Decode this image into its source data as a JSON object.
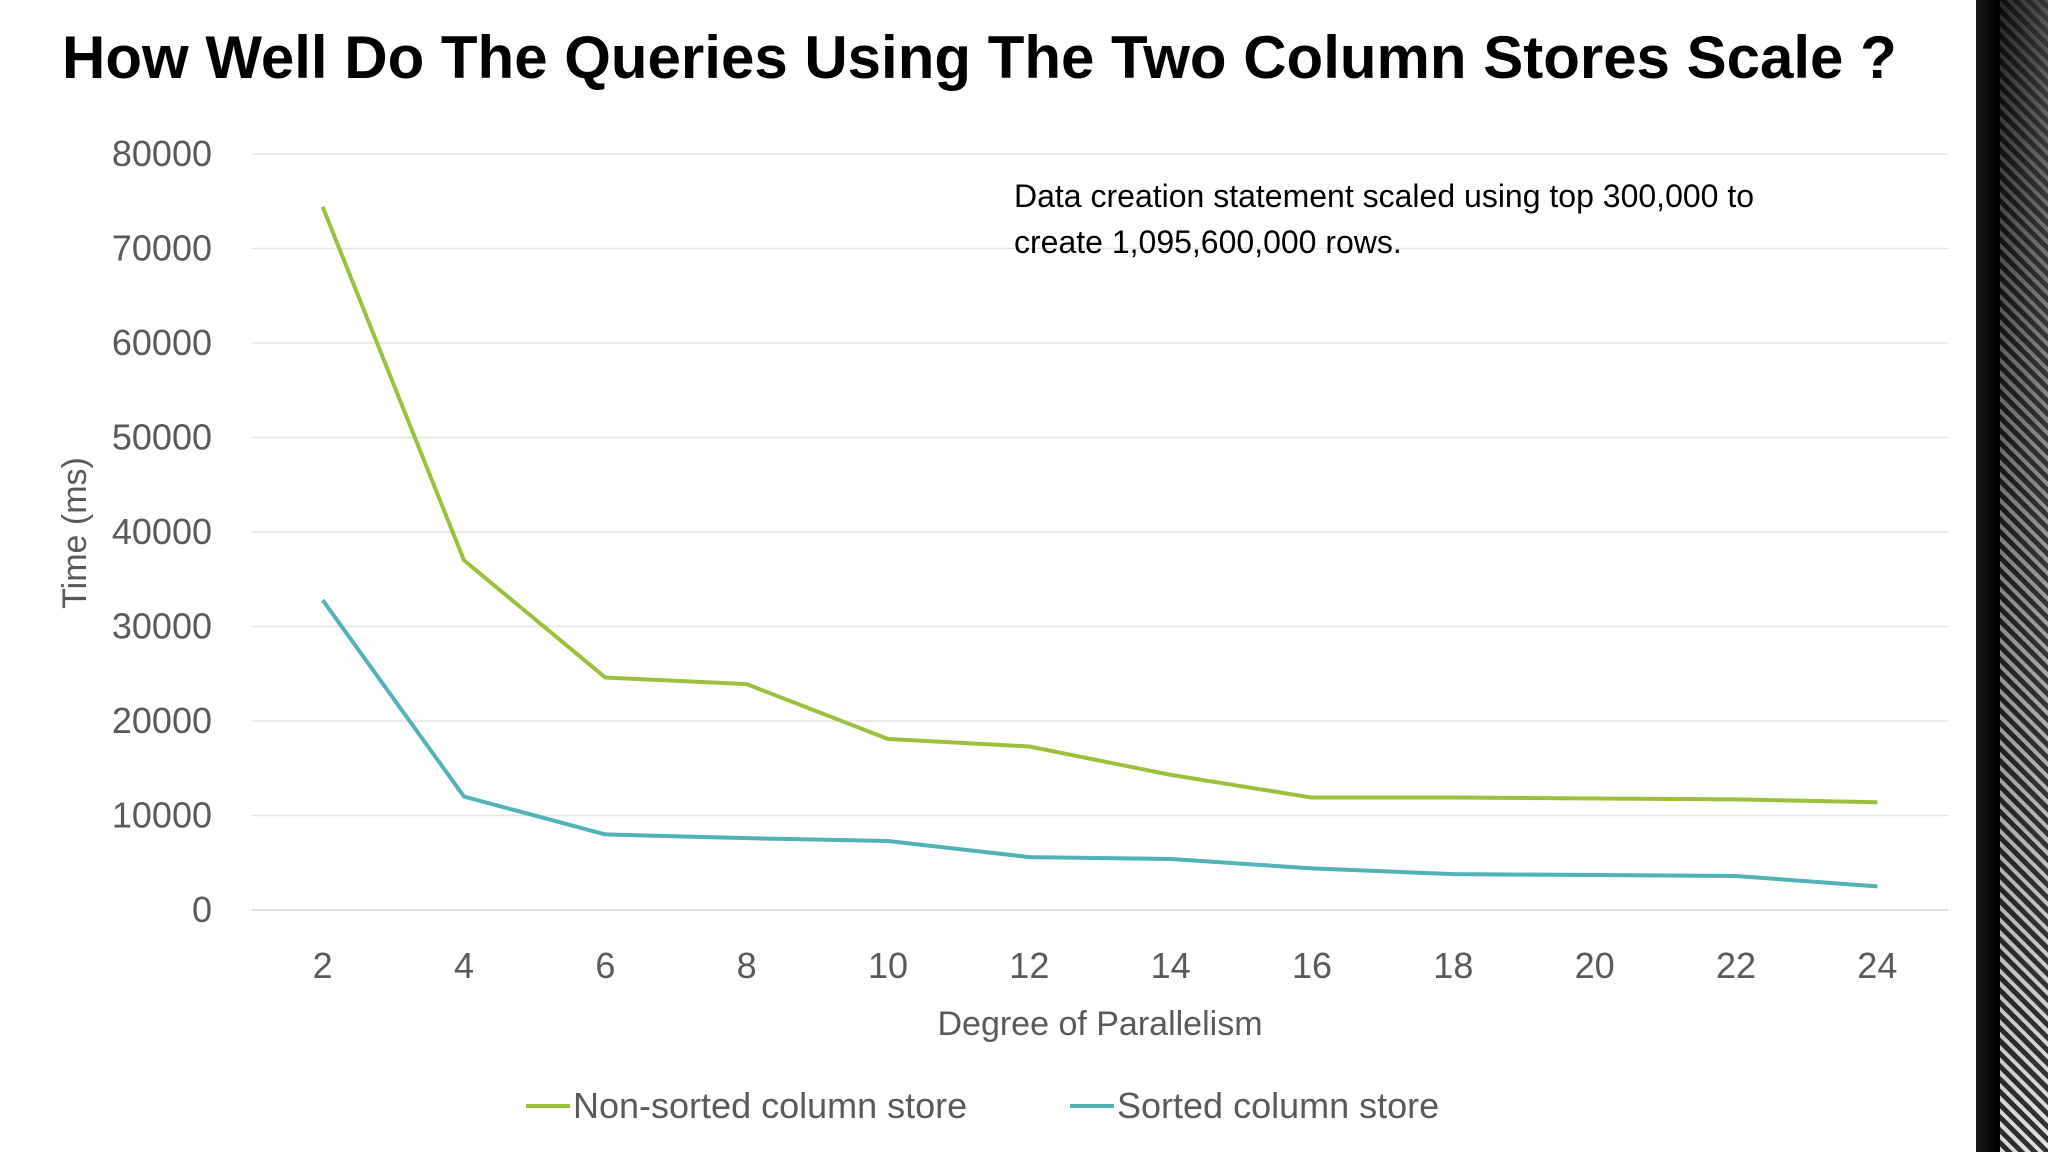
{
  "slide": {
    "title": "How Well Do The Queries Using The Two Column Stores Scale ?"
  },
  "chart_data": {
    "type": "line",
    "title": "",
    "xlabel": "Degree of Parallelism",
    "ylabel": "Time (ms)",
    "x": [
      2,
      4,
      6,
      8,
      10,
      12,
      14,
      16,
      18,
      20,
      22,
      24
    ],
    "x_tick_labels": [
      "2",
      "4",
      "6",
      "8",
      "10",
      "12",
      "14",
      "16",
      "18",
      "20",
      "22",
      "24"
    ],
    "y_tick_labels": [
      "0",
      "10000",
      "20000",
      "30000",
      "40000",
      "50000",
      "60000",
      "70000",
      "80000"
    ],
    "ylim": [
      0,
      80000
    ],
    "grid": true,
    "legend_position": "bottom",
    "series": [
      {
        "name": "Non-sorted column store",
        "color": "#9bc13c",
        "values": [
          74400,
          37000,
          24600,
          23900,
          18100,
          17300,
          14300,
          11900,
          11900,
          11800,
          11700,
          11400
        ]
      },
      {
        "name": "Sorted column store",
        "color": "#4fb3b8",
        "values": [
          32800,
          12000,
          8000,
          7600,
          7300,
          5600,
          5400,
          4400,
          3800,
          3700,
          3600,
          2500
        ]
      }
    ],
    "annotation": {
      "line1": "Data creation statement scaled using top 300,000 to",
      "line2": "create 1,095,600,000 rows."
    }
  }
}
